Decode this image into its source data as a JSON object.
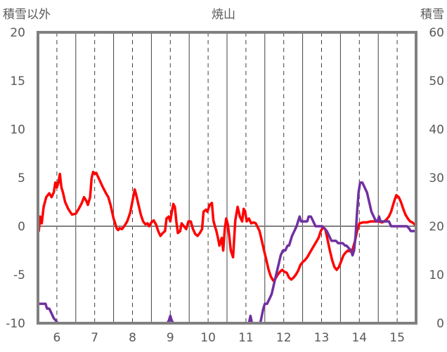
{
  "chart_data": {
    "type": "line",
    "title": "焼山",
    "ylabel_left": "積雪以外",
    "ylabel_right": "積雪",
    "x_range": [
      5.5,
      15.5
    ],
    "x_ticks": [
      6,
      7,
      8,
      9,
      10,
      11,
      12,
      13,
      14,
      15
    ],
    "x_tick_labels": [
      "6",
      "7",
      "8",
      "9",
      "10",
      "11",
      "12",
      "13",
      "14",
      "15"
    ],
    "ylim_left": [
      -10,
      20
    ],
    "y_ticks_left": [
      -10,
      -5,
      0,
      5,
      10,
      15,
      20
    ],
    "y_tick_labels_left": [
      "-10",
      "-5",
      "0",
      "5",
      "10",
      "15",
      "20"
    ],
    "ylim_right": [
      0,
      60
    ],
    "y_ticks_right": [
      0,
      10,
      20,
      30,
      40,
      50,
      60
    ],
    "y_tick_labels_right": [
      "0",
      "10",
      "20",
      "30",
      "40",
      "50",
      "60"
    ],
    "grid_x": "dashed",
    "zero_line": true,
    "series": [
      {
        "axis": "left",
        "color": "#ff0000",
        "points": [
          [
            5.52,
            -0.5
          ],
          [
            5.56,
            1.0
          ],
          [
            5.6,
            0.3
          ],
          [
            5.65,
            2.0
          ],
          [
            5.72,
            3.0
          ],
          [
            5.8,
            3.4
          ],
          [
            5.86,
            3.0
          ],
          [
            5.92,
            3.5
          ],
          [
            5.96,
            4.5
          ],
          [
            6.0,
            4.0
          ],
          [
            6.04,
            4.5
          ],
          [
            6.08,
            5.4
          ],
          [
            6.12,
            4.0
          ],
          [
            6.16,
            3.5
          ],
          [
            6.22,
            2.5
          ],
          [
            6.3,
            1.8
          ],
          [
            6.4,
            1.2
          ],
          [
            6.5,
            1.3
          ],
          [
            6.58,
            1.8
          ],
          [
            6.66,
            2.4
          ],
          [
            6.72,
            3.0
          ],
          [
            6.78,
            2.6
          ],
          [
            6.82,
            2.2
          ],
          [
            6.88,
            3.0
          ],
          [
            6.92,
            5.0
          ],
          [
            6.96,
            5.6
          ],
          [
            7.0,
            5.4
          ],
          [
            7.04,
            5.5
          ],
          [
            7.1,
            5.0
          ],
          [
            7.16,
            4.5
          ],
          [
            7.22,
            4.0
          ],
          [
            7.3,
            3.4
          ],
          [
            7.36,
            3.0
          ],
          [
            7.42,
            2.2
          ],
          [
            7.46,
            1.5
          ],
          [
            7.5,
            0.8
          ],
          [
            7.54,
            0.3
          ],
          [
            7.58,
            -0.2
          ],
          [
            7.62,
            -0.4
          ],
          [
            7.66,
            -0.2
          ],
          [
            7.72,
            -0.3
          ],
          [
            7.78,
            0.0
          ],
          [
            7.86,
            0.5
          ],
          [
            7.94,
            1.4
          ],
          [
            8.0,
            2.6
          ],
          [
            8.06,
            3.8
          ],
          [
            8.1,
            3.2
          ],
          [
            8.16,
            2.2
          ],
          [
            8.22,
            1.2
          ],
          [
            8.28,
            0.5
          ],
          [
            8.34,
            0.2
          ],
          [
            8.4,
            0.3
          ],
          [
            8.44,
            0.0
          ],
          [
            8.5,
            0.4
          ],
          [
            8.56,
            0.6
          ],
          [
            8.62,
            0.2
          ],
          [
            8.68,
            -0.5
          ],
          [
            8.74,
            -1.0
          ],
          [
            8.8,
            -0.7
          ],
          [
            8.86,
            -0.5
          ],
          [
            8.9,
            0.8
          ],
          [
            8.96,
            1.0
          ],
          [
            9.0,
            0.5
          ],
          [
            9.04,
            1.5
          ],
          [
            9.08,
            2.3
          ],
          [
            9.12,
            2.0
          ],
          [
            9.16,
            0.5
          ],
          [
            9.2,
            -0.7
          ],
          [
            9.26,
            -0.5
          ],
          [
            9.3,
            0.3
          ],
          [
            9.36,
            0.0
          ],
          [
            9.42,
            -0.3
          ],
          [
            9.48,
            0.5
          ],
          [
            9.54,
            0.5
          ],
          [
            9.6,
            -0.3
          ],
          [
            9.66,
            -0.8
          ],
          [
            9.72,
            -1.0
          ],
          [
            9.78,
            -0.7
          ],
          [
            9.84,
            -0.3
          ],
          [
            9.88,
            1.5
          ],
          [
            9.94,
            1.7
          ],
          [
            9.98,
            1.5
          ],
          [
            10.04,
            2.2
          ],
          [
            10.1,
            2.4
          ],
          [
            10.14,
            0.6
          ],
          [
            10.18,
            0.0
          ],
          [
            10.22,
            -0.5
          ],
          [
            10.26,
            -1.2
          ],
          [
            10.3,
            -2.0
          ],
          [
            10.36,
            -1.2
          ],
          [
            10.4,
            -2.5
          ],
          [
            10.44,
            -0.3
          ],
          [
            10.48,
            0.8
          ],
          [
            10.52,
            0.2
          ],
          [
            10.56,
            -1.0
          ],
          [
            10.6,
            -2.5
          ],
          [
            10.66,
            -3.2
          ],
          [
            10.72,
            0.6
          ],
          [
            10.78,
            2.0
          ],
          [
            10.84,
            1.0
          ],
          [
            10.9,
            0.5
          ],
          [
            10.94,
            1.8
          ],
          [
            10.98,
            1.5
          ],
          [
            11.02,
            0.5
          ],
          [
            11.08,
            0.8
          ],
          [
            11.14,
            0.3
          ],
          [
            11.2,
            0.4
          ],
          [
            11.26,
            0.3
          ],
          [
            11.3,
            0.0
          ],
          [
            11.36,
            -0.5
          ],
          [
            11.42,
            -1.5
          ],
          [
            11.48,
            -2.5
          ],
          [
            11.54,
            -3.5
          ],
          [
            11.6,
            -4.5
          ],
          [
            11.66,
            -5.2
          ],
          [
            11.72,
            -5.6
          ],
          [
            11.78,
            -5.4
          ],
          [
            11.84,
            -5.0
          ],
          [
            11.9,
            -4.7
          ],
          [
            11.96,
            -4.5
          ],
          [
            12.02,
            -4.7
          ],
          [
            12.08,
            -4.8
          ],
          [
            12.14,
            -5.3
          ],
          [
            12.2,
            -5.5
          ],
          [
            12.26,
            -5.3
          ],
          [
            12.32,
            -5.0
          ],
          [
            12.38,
            -4.6
          ],
          [
            12.44,
            -4.0
          ],
          [
            12.5,
            -3.7
          ],
          [
            12.56,
            -3.5
          ],
          [
            12.62,
            -3.2
          ],
          [
            12.68,
            -2.8
          ],
          [
            12.74,
            -2.4
          ],
          [
            12.8,
            -2.0
          ],
          [
            12.86,
            -1.6
          ],
          [
            12.92,
            -1.2
          ],
          [
            12.98,
            -0.5
          ],
          [
            13.04,
            -0.1
          ],
          [
            13.1,
            -0.3
          ],
          [
            13.16,
            -1.4
          ],
          [
            13.22,
            -2.5
          ],
          [
            13.28,
            -3.5
          ],
          [
            13.34,
            -4.2
          ],
          [
            13.4,
            -4.5
          ],
          [
            13.46,
            -4.2
          ],
          [
            13.52,
            -3.6
          ],
          [
            13.58,
            -3.0
          ],
          [
            13.64,
            -2.7
          ],
          [
            13.7,
            -2.5
          ],
          [
            13.76,
            -2.6
          ],
          [
            13.82,
            -2.4
          ],
          [
            13.88,
            -1.6
          ],
          [
            13.94,
            -0.5
          ],
          [
            14.0,
            0.3
          ],
          [
            14.1,
            0.4
          ],
          [
            14.2,
            0.4
          ],
          [
            14.3,
            0.5
          ],
          [
            14.4,
            0.5
          ],
          [
            14.5,
            0.5
          ],
          [
            14.6,
            0.4
          ],
          [
            14.66,
            0.5
          ],
          [
            14.72,
            0.7
          ],
          [
            14.78,
            1.0
          ],
          [
            14.84,
            1.5
          ],
          [
            14.9,
            2.3
          ],
          [
            14.94,
            2.8
          ],
          [
            14.98,
            3.2
          ],
          [
            15.04,
            3.0
          ],
          [
            15.1,
            2.5
          ],
          [
            15.16,
            1.8
          ],
          [
            15.22,
            1.2
          ],
          [
            15.28,
            0.8
          ],
          [
            15.34,
            0.5
          ],
          [
            15.4,
            0.4
          ],
          [
            15.46,
            0.2
          ],
          [
            15.5,
            0.0
          ]
        ]
      },
      {
        "axis": "right",
        "color": "#7030a0",
        "points": [
          [
            5.5,
            4
          ],
          [
            5.7,
            4
          ],
          [
            5.74,
            3
          ],
          [
            5.8,
            3
          ],
          [
            5.86,
            2
          ],
          [
            5.92,
            1
          ],
          [
            5.98,
            0.5
          ],
          [
            6.02,
            0
          ],
          [
            6.5,
            0
          ],
          [
            7.0,
            0
          ],
          [
            7.5,
            0
          ],
          [
            8.0,
            0
          ],
          [
            8.5,
            0
          ],
          [
            8.92,
            0
          ],
          [
            8.96,
            0.5
          ],
          [
            9.0,
            1.5
          ],
          [
            9.04,
            0.5
          ],
          [
            9.08,
            0
          ],
          [
            9.5,
            0
          ],
          [
            10.0,
            0
          ],
          [
            10.5,
            0
          ],
          [
            10.9,
            0
          ],
          [
            11.08,
            0
          ],
          [
            11.12,
            1.5
          ],
          [
            11.16,
            0
          ],
          [
            11.38,
            0
          ],
          [
            11.42,
            1.5
          ],
          [
            11.46,
            3
          ],
          [
            11.5,
            4
          ],
          [
            11.56,
            4
          ],
          [
            11.62,
            5
          ],
          [
            11.68,
            6
          ],
          [
            11.74,
            8
          ],
          [
            11.8,
            10
          ],
          [
            11.86,
            12
          ],
          [
            11.92,
            14
          ],
          [
            11.98,
            15
          ],
          [
            12.04,
            15
          ],
          [
            12.1,
            16
          ],
          [
            12.14,
            16
          ],
          [
            12.18,
            17
          ],
          [
            12.22,
            18
          ],
          [
            12.28,
            19
          ],
          [
            12.34,
            20
          ],
          [
            12.38,
            21
          ],
          [
            12.42,
            22
          ],
          [
            12.46,
            21
          ],
          [
            12.52,
            21
          ],
          [
            12.58,
            21
          ],
          [
            12.62,
            21
          ],
          [
            12.66,
            22
          ],
          [
            12.72,
            22
          ],
          [
            12.78,
            21
          ],
          [
            12.84,
            20
          ],
          [
            12.9,
            20
          ],
          [
            12.96,
            20
          ],
          [
            13.02,
            20
          ],
          [
            13.08,
            19.5
          ],
          [
            13.14,
            19
          ],
          [
            13.2,
            18
          ],
          [
            13.26,
            17
          ],
          [
            13.32,
            17
          ],
          [
            13.38,
            17
          ],
          [
            13.44,
            16.5
          ],
          [
            13.5,
            16.5
          ],
          [
            13.56,
            16.5
          ],
          [
            13.62,
            16
          ],
          [
            13.66,
            16
          ],
          [
            13.72,
            15.5
          ],
          [
            13.78,
            15
          ],
          [
            13.82,
            14
          ],
          [
            13.86,
            15
          ],
          [
            13.9,
            18
          ],
          [
            13.94,
            23
          ],
          [
            13.98,
            27
          ],
          [
            14.02,
            29
          ],
          [
            14.08,
            29
          ],
          [
            14.14,
            28
          ],
          [
            14.2,
            27
          ],
          [
            14.26,
            25
          ],
          [
            14.32,
            23
          ],
          [
            14.38,
            22
          ],
          [
            14.44,
            21
          ],
          [
            14.48,
            21
          ],
          [
            14.52,
            22
          ],
          [
            14.56,
            21
          ],
          [
            14.62,
            21
          ],
          [
            14.66,
            21
          ],
          [
            14.72,
            21
          ],
          [
            14.78,
            21
          ],
          [
            14.84,
            20
          ],
          [
            14.9,
            20
          ],
          [
            14.96,
            20
          ],
          [
            15.02,
            20
          ],
          [
            15.08,
            20
          ],
          [
            15.14,
            20
          ],
          [
            15.2,
            20
          ],
          [
            15.26,
            20
          ],
          [
            15.32,
            19.5
          ],
          [
            15.36,
            19
          ],
          [
            15.42,
            19
          ],
          [
            15.48,
            19
          ],
          [
            15.5,
            19
          ]
        ]
      }
    ]
  }
}
